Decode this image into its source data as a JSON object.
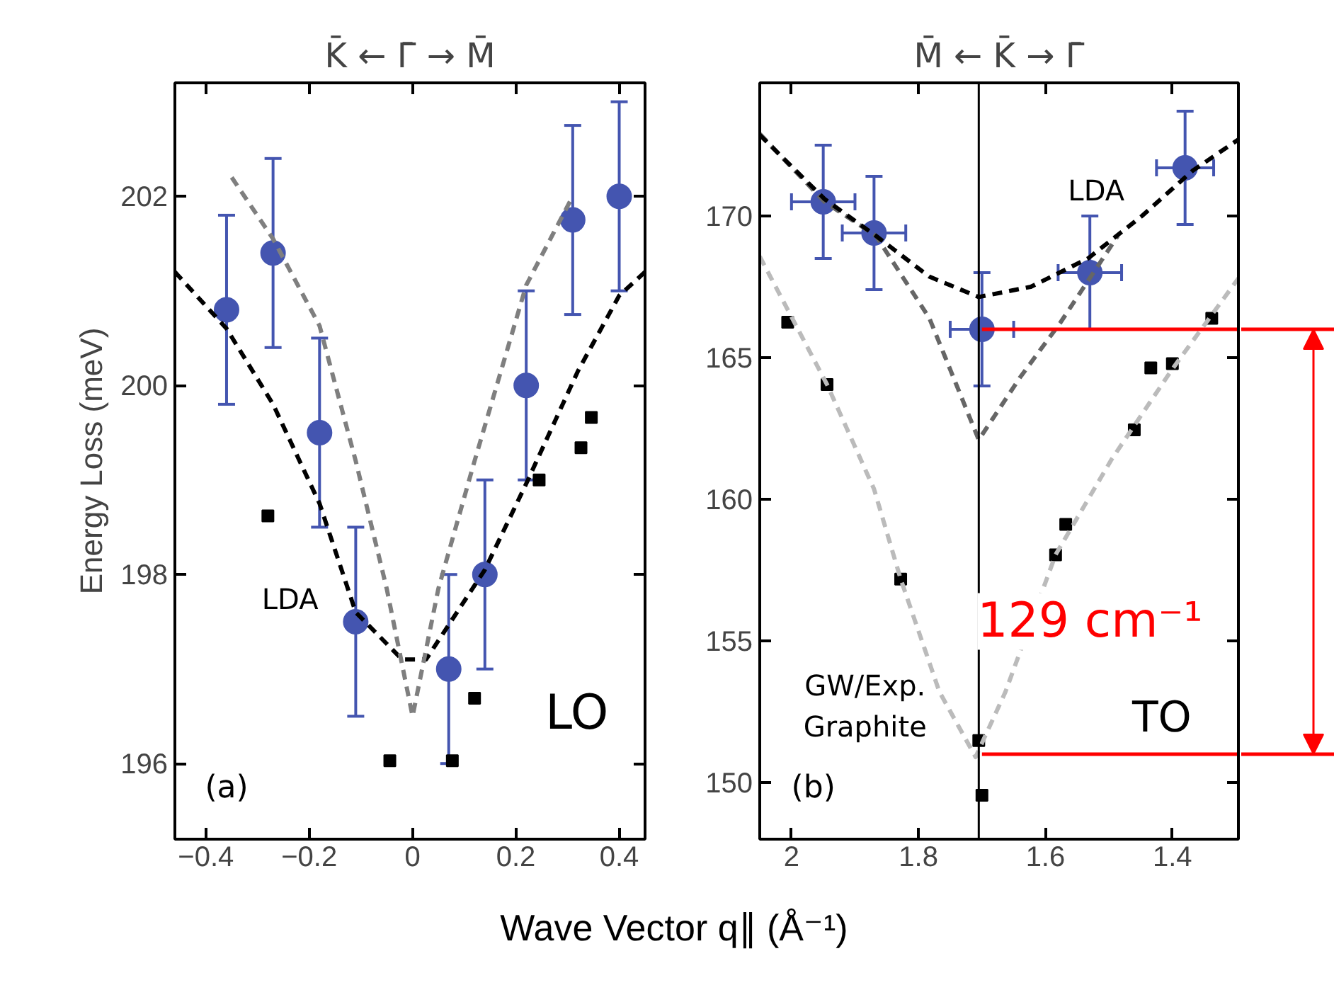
{
  "chart_data": [
    {
      "type": "scatter",
      "title": "K̄ ← Γ̄ → M̄",
      "ylabel": "Energy Loss (meV)",
      "xlabel": "Wave Vector q∥ (Å⁻¹)",
      "xlim": [
        -0.46,
        0.45
      ],
      "xticks": [
        -0.4,
        -0.2,
        0,
        0.2,
        0.4
      ],
      "ylim": [
        195.2,
        203.2
      ],
      "yticks": [
        196,
        198,
        200,
        202
      ],
      "grid": false,
      "annotations": [
        "(a)",
        "LO",
        "LDA"
      ],
      "series": [
        {
          "type": "line",
          "line_style": "dashed",
          "marker": "none",
          "color": "#000000",
          "x": [
            -0.46,
            -0.36,
            -0.27,
            -0.18,
            -0.11,
            -0.02,
            0.026,
            0.14,
            0.22,
            0.32,
            0.4,
            0.45
          ],
          "values": [
            201.2,
            200.6,
            199.8,
            198.75,
            197.6,
            197.1,
            197.1,
            198.05,
            198.96,
            200.15,
            200.95,
            201.2
          ]
        },
        {
          "type": "line",
          "line_style": "dashed",
          "marker": "none",
          "color": "#7f7f7f",
          "x": [
            -0.35,
            -0.27,
            -0.18,
            -0.11,
            -0.05,
            0.0,
            0.05,
            0.12,
            0.22,
            0.31
          ],
          "values": [
            202.2,
            201.55,
            200.63,
            199.2,
            197.85,
            196.5,
            197.85,
            199.2,
            201.06,
            202.0
          ]
        },
        {
          "type": "scatter",
          "marker": "square",
          "color": "#000000",
          "x": [
            -0.28,
            -0.044,
            0.077,
            0.12,
            0.245,
            0.326,
            0.346
          ],
          "values": [
            198.62,
            196.03,
            196.03,
            196.69,
            199.0,
            199.34,
            199.66
          ]
        },
        {
          "type": "scatter",
          "marker": "circle",
          "color": "#4455b0",
          "x": [
            -0.36,
            -0.27,
            -0.18,
            -0.11,
            0.07,
            0.14,
            0.22,
            0.31,
            0.4
          ],
          "values": [
            200.8,
            201.4,
            199.5,
            197.5,
            197.0,
            198.0,
            200.0,
            201.75,
            202.0
          ],
          "errors": [
            1,
            1,
            1,
            1,
            1,
            1,
            1,
            1,
            1
          ]
        }
      ]
    },
    {
      "type": "scatter",
      "title": "M̄ ← K̄ → Γ̄",
      "xlim": [
        2.05,
        1.296
      ],
      "xticks": [
        2.0,
        1.8,
        1.6,
        1.4
      ],
      "ylim": [
        148,
        174.7
      ],
      "yticks": [
        150,
        155,
        160,
        165,
        170
      ],
      "grid": false,
      "annotations": [
        "(b)",
        "TO",
        "GW/Exp.\nGraphite",
        "129 cm⁻¹",
        "LDA"
      ],
      "ref_lines": [
        {
          "axis": "x",
          "value": 1.705,
          "color": "#000000",
          "line_style": "solid"
        }
      ],
      "series": [
        {
          "type": "line",
          "line_style": "dashed",
          "marker": "none",
          "color": "#bbbbbb",
          "x": [
            2.05,
            1.944,
            1.87,
            1.828,
            1.767,
            1.71,
            1.663,
            1.584,
            1.496,
            1.4,
            1.296
          ],
          "values": [
            168.57,
            164.05,
            160.36,
            157.18,
            153.2,
            150.9,
            153.2,
            158.04,
            161.4,
            164.6,
            167.8
          ]
        },
        {
          "type": "line",
          "line_style": "dashed",
          "marker": "none",
          "color": "#666666",
          "x": [
            2.05,
            1.948,
            1.867,
            1.783,
            1.705,
            1.64,
            1.576,
            1.486
          ],
          "values": [
            172.9,
            170.5,
            169.3,
            166.4,
            162.1,
            164.3,
            166.25,
            169.3
          ]
        },
        {
          "type": "line",
          "line_style": "dashed",
          "marker": "none",
          "color": "#000000",
          "x": [
            2.05,
            1.948,
            1.867,
            1.783,
            1.705,
            1.623,
            1.533,
            1.448,
            1.368,
            1.296
          ],
          "values": [
            172.86,
            170.6,
            169.3,
            167.86,
            167.14,
            167.5,
            168.5,
            170.0,
            171.6,
            172.7
          ]
        },
        {
          "type": "scatter",
          "marker": "square",
          "color": "#000000",
          "x": [
            2.006,
            1.944,
            1.828,
            1.705,
            1.7,
            1.584,
            1.568,
            1.46,
            1.434,
            1.4,
            1.338
          ],
          "values": [
            166.25,
            164.05,
            157.18,
            151.48,
            149.55,
            158.04,
            159.11,
            162.45,
            164.64,
            164.79,
            166.39
          ]
        },
        {
          "type": "line",
          "line_style": "solid",
          "marker": "none",
          "color": "#ff0000",
          "x": [
            1.7,
            1.296
          ],
          "values": [
            166,
            166
          ]
        },
        {
          "type": "line",
          "line_style": "solid",
          "marker": "none",
          "color": "#ff0000",
          "x": [
            1.7,
            1.296
          ],
          "values": [
            151,
            151
          ]
        },
        {
          "type": "scatter",
          "marker": "circle",
          "color": "#4455b0",
          "x": [
            1.95,
            1.87,
            1.7,
            1.53,
            1.38
          ],
          "values": [
            170.5,
            169.4,
            166.0,
            168.0,
            171.7
          ],
          "errors": [
            2,
            2,
            2,
            2,
            2
          ],
          "xerrors": [
            0.05,
            0.05,
            0.05,
            0.05,
            0.045
          ]
        }
      ]
    }
  ]
}
